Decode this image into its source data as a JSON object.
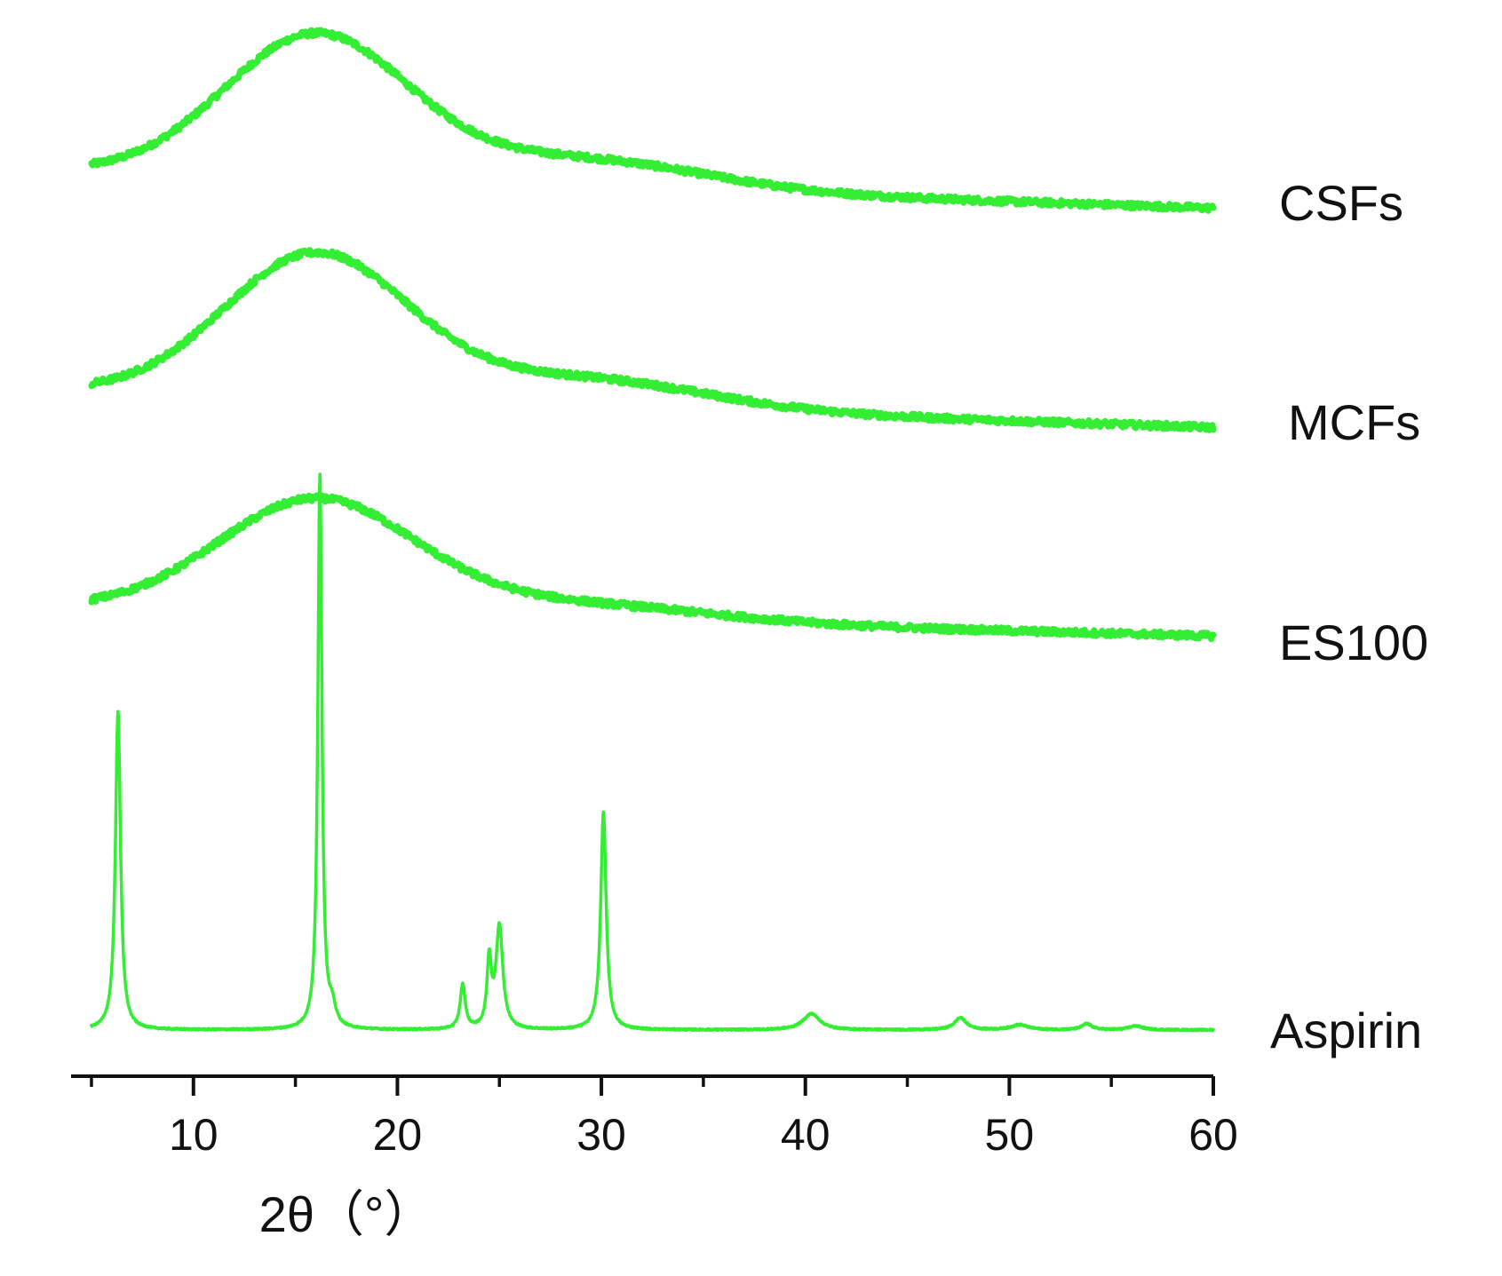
{
  "chart_data": {
    "type": "line",
    "title": "",
    "xlabel": "2θ（°）",
    "ylabel": "",
    "xlim": [
      4,
      60
    ],
    "x_ticks": [
      10,
      20,
      30,
      40,
      50,
      60
    ],
    "x_minor_ticks": [
      5,
      15,
      25,
      35,
      45,
      55
    ],
    "y_ticks_shown": false,
    "grid": false,
    "legend": "none (series labelled at right end of each trace)",
    "line_color": "#33ee33",
    "stacked_offset": true,
    "series": [
      {
        "name": "CSFs",
        "x_start": 5,
        "peaks": [
          {
            "x": 16.0,
            "height": 0.7,
            "width": 4.5,
            "shape": "broad"
          },
          {
            "x": 29.0,
            "height": 0.14,
            "width": 6.0,
            "shape": "broad"
          }
        ],
        "baseline_start": 0.0,
        "baseline_end": -0.18
      },
      {
        "name": "MCFs",
        "x_start": 5,
        "peaks": [
          {
            "x": 16.0,
            "height": 0.7,
            "width": 4.5,
            "shape": "broad"
          },
          {
            "x": 29.0,
            "height": 0.14,
            "width": 6.0,
            "shape": "broad"
          }
        ],
        "baseline_start": 0.0,
        "baseline_end": -0.18
      },
      {
        "name": "ES100",
        "x_start": 5,
        "peaks": [
          {
            "x": 16.0,
            "height": 0.55,
            "width": 4.8,
            "shape": "broad"
          },
          {
            "x": 28.5,
            "height": 0.08,
            "width": 6.5,
            "shape": "broad"
          }
        ],
        "baseline_start": 0.0,
        "baseline_end": -0.14
      },
      {
        "name": "Aspirin",
        "x_start": 5,
        "peaks": [
          {
            "x": 6.3,
            "height": 1.58,
            "width": 0.15,
            "shape": "sharp"
          },
          {
            "x": 16.2,
            "height": 2.75,
            "width": 0.12,
            "shape": "sharp"
          },
          {
            "x": 16.8,
            "height": 0.09,
            "width": 0.2,
            "shape": "sharp"
          },
          {
            "x": 23.2,
            "height": 0.22,
            "width": 0.15,
            "shape": "sharp"
          },
          {
            "x": 24.5,
            "height": 0.33,
            "width": 0.13,
            "shape": "sharp"
          },
          {
            "x": 25.0,
            "height": 0.51,
            "width": 0.2,
            "shape": "sharp"
          },
          {
            "x": 30.1,
            "height": 1.08,
            "width": 0.16,
            "shape": "sharp"
          },
          {
            "x": 40.3,
            "height": 0.08,
            "width": 0.5,
            "shape": "sharp"
          },
          {
            "x": 47.6,
            "height": 0.06,
            "width": 0.35,
            "shape": "sharp"
          },
          {
            "x": 50.5,
            "height": 0.025,
            "width": 0.5,
            "shape": "sharp"
          },
          {
            "x": 53.8,
            "height": 0.03,
            "width": 0.3,
            "shape": "sharp"
          },
          {
            "x": 56.2,
            "height": 0.02,
            "width": 0.4,
            "shape": "sharp"
          }
        ],
        "baseline_start": 0.0,
        "baseline_end": 0.0
      }
    ]
  }
}
